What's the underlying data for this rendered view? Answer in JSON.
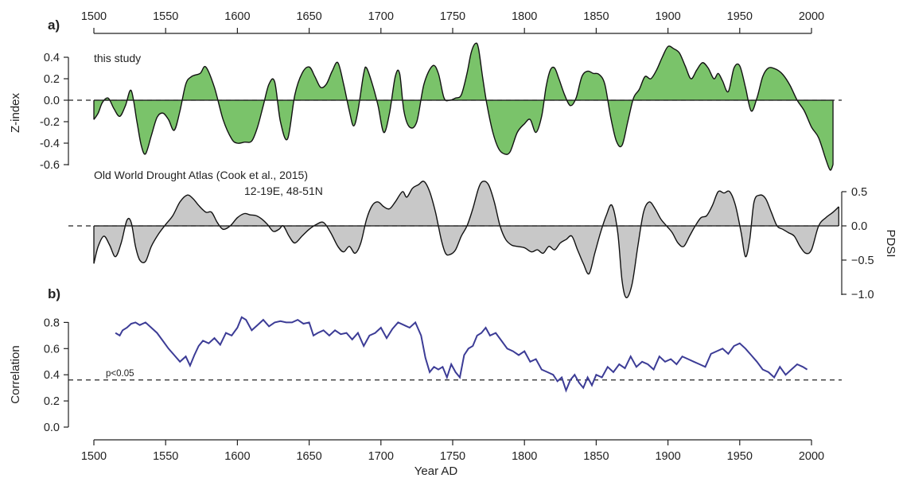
{
  "panel_labels": {
    "a": "a)",
    "b": "b)"
  },
  "chart_data": [
    {
      "type": "area",
      "title": "this study",
      "xlabel": "",
      "ylabel": "Z-index",
      "xlim": [
        1500,
        2020
      ],
      "ylim": [
        -0.6,
        0.45
      ],
      "x_ticks": [
        "1500",
        "1550",
        "1600",
        "1650",
        "1700",
        "1750",
        "1800",
        "1850",
        "1900",
        "1950",
        "2000"
      ],
      "y_ticks": [
        "0.4",
        "0.2",
        "0.0",
        "-0.2",
        "-0.4",
        "-0.6"
      ],
      "reference_line": 0,
      "fill_color": "#7ac36a",
      "series": [
        {
          "x": [
            1500,
            1503,
            1506,
            1510,
            1514,
            1518,
            1522,
            1526,
            1530,
            1533,
            1536,
            1540,
            1544,
            1548,
            1552,
            1556,
            1560,
            1564,
            1568,
            1574,
            1578,
            1584,
            1590,
            1596,
            1600,
            1605,
            1610,
            1614,
            1618,
            1622,
            1626,
            1630,
            1635,
            1640,
            1645,
            1650,
            1654,
            1658,
            1662,
            1666,
            1670,
            1674,
            1678,
            1681,
            1684,
            1688,
            1690,
            1694,
            1698,
            1702,
            1706,
            1710,
            1713,
            1716,
            1720,
            1725,
            1730,
            1736,
            1740,
            1744,
            1748,
            1752,
            1756,
            1760,
            1763,
            1766,
            1768,
            1771,
            1774,
            1778,
            1782,
            1786,
            1790,
            1795,
            1800,
            1804,
            1808,
            1812,
            1815,
            1818,
            1821,
            1824,
            1828,
            1832,
            1836,
            1840,
            1844,
            1848,
            1852,
            1856,
            1860,
            1864,
            1868,
            1872,
            1876,
            1880,
            1884,
            1888,
            1892,
            1896,
            1900,
            1904,
            1908,
            1912,
            1916,
            1920,
            1924,
            1928,
            1932,
            1935,
            1938,
            1942,
            1946,
            1950,
            1954,
            1958,
            1962,
            1966,
            1970,
            1975,
            1980,
            1985,
            1990,
            1995,
            2000,
            2005,
            2010,
            2013,
            2015
          ],
          "y": [
            -0.18,
            -0.12,
            -0.02,
            0.02,
            -0.08,
            -0.15,
            -0.05,
            0.09,
            -0.2,
            -0.42,
            -0.5,
            -0.33,
            -0.16,
            -0.12,
            -0.18,
            -0.28,
            -0.1,
            0.15,
            0.22,
            0.25,
            0.31,
            0.12,
            -0.18,
            -0.36,
            -0.4,
            -0.39,
            -0.38,
            -0.25,
            -0.05,
            0.15,
            0.17,
            -0.2,
            -0.36,
            0.05,
            0.25,
            0.31,
            0.22,
            0.12,
            0.15,
            0.27,
            0.35,
            0.15,
            -0.1,
            -0.24,
            -0.1,
            0.25,
            0.3,
            0.15,
            -0.05,
            -0.3,
            -0.12,
            0.22,
            0.25,
            -0.1,
            -0.25,
            -0.2,
            0.15,
            0.32,
            0.25,
            0.02,
            0.0,
            0.02,
            0.05,
            0.25,
            0.45,
            0.53,
            0.48,
            0.2,
            -0.05,
            -0.3,
            -0.45,
            -0.5,
            -0.48,
            -0.3,
            -0.22,
            -0.18,
            -0.3,
            -0.15,
            0.12,
            0.28,
            0.3,
            0.2,
            0.05,
            -0.05,
            0.02,
            0.22,
            0.27,
            0.25,
            0.24,
            0.15,
            -0.15,
            -0.38,
            -0.42,
            -0.2,
            0.02,
            0.1,
            0.22,
            0.2,
            0.28,
            0.4,
            0.5,
            0.48,
            0.44,
            0.32,
            0.2,
            0.28,
            0.35,
            0.3,
            0.2,
            0.25,
            0.18,
            0.08,
            0.3,
            0.32,
            0.12,
            -0.1,
            0.02,
            0.22,
            0.3,
            0.29,
            0.24,
            0.14,
            0.0,
            -0.1,
            -0.25,
            -0.35,
            -0.55,
            -0.65,
            -0.6
          ]
        }
      ]
    },
    {
      "type": "area",
      "title": "Old World Drought Atlas (Cook et al., 2015)",
      "subtitle": "12-19E, 48-51N",
      "xlabel": "",
      "ylabel": "PDSI",
      "xlim": [
        1500,
        2020
      ],
      "ylim": [
        -1.0,
        0.55
      ],
      "y_ticks": [
        "0.5",
        "0.0",
        "−0.5",
        "−1.0"
      ],
      "reference_line": 0,
      "fill_color": "#c8c8c8",
      "series": [
        {
          "x": [
            1500,
            1503,
            1507,
            1511,
            1515,
            1519,
            1523,
            1526,
            1529,
            1532,
            1536,
            1540,
            1545,
            1550,
            1555,
            1560,
            1565,
            1569,
            1573,
            1578,
            1582,
            1586,
            1590,
            1595,
            1600,
            1605,
            1609,
            1613,
            1617,
            1621,
            1625,
            1629,
            1632,
            1636,
            1640,
            1645,
            1650,
            1655,
            1660,
            1665,
            1670,
            1674,
            1678,
            1682,
            1686,
            1690,
            1694,
            1698,
            1702,
            1706,
            1710,
            1715,
            1718,
            1722,
            1726,
            1730,
            1734,
            1738,
            1742,
            1745,
            1748,
            1752,
            1756,
            1760,
            1764,
            1768,
            1771,
            1775,
            1779,
            1783,
            1787,
            1791,
            1795,
            1800,
            1805,
            1809,
            1813,
            1817,
            1821,
            1825,
            1829,
            1833,
            1837,
            1841,
            1845,
            1849,
            1853,
            1857,
            1861,
            1865,
            1868,
            1871,
            1875,
            1879,
            1883,
            1887,
            1891,
            1895,
            1899,
            1903,
            1907,
            1911,
            1915,
            1919,
            1923,
            1927,
            1931,
            1935,
            1939,
            1943,
            1947,
            1951,
            1954,
            1957,
            1960,
            1964,
            1968,
            1972,
            1976,
            1980,
            1984,
            1988,
            1992,
            1996,
            2000,
            2005,
            2010,
            2015,
            2019
          ],
          "y": [
            -0.55,
            -0.3,
            -0.15,
            -0.28,
            -0.45,
            -0.25,
            0.08,
            0.05,
            -0.3,
            -0.5,
            -0.52,
            -0.3,
            -0.12,
            0.02,
            0.15,
            0.35,
            0.45,
            0.4,
            0.3,
            0.2,
            0.2,
            0.05,
            -0.05,
            0.0,
            0.12,
            0.18,
            0.16,
            0.15,
            0.1,
            0.02,
            -0.08,
            -0.05,
            0.0,
            -0.15,
            -0.25,
            -0.15,
            -0.05,
            0.02,
            0.05,
            -0.1,
            -0.3,
            -0.38,
            -0.3,
            -0.4,
            -0.25,
            0.1,
            0.3,
            0.35,
            0.28,
            0.25,
            0.35,
            0.5,
            0.42,
            0.55,
            0.6,
            0.65,
            0.5,
            0.2,
            -0.2,
            -0.4,
            -0.42,
            -0.35,
            -0.15,
            0.0,
            0.25,
            0.55,
            0.65,
            0.6,
            0.35,
            0.0,
            -0.2,
            -0.28,
            -0.3,
            -0.32,
            -0.38,
            -0.35,
            -0.4,
            -0.3,
            -0.35,
            -0.25,
            -0.2,
            -0.15,
            -0.35,
            -0.55,
            -0.7,
            -0.4,
            -0.1,
            0.15,
            0.3,
            -0.1,
            -0.8,
            -1.05,
            -0.85,
            -0.3,
            0.2,
            0.35,
            0.25,
            0.1,
            0.0,
            -0.1,
            -0.25,
            -0.3,
            -0.15,
            0.0,
            0.12,
            0.15,
            0.3,
            0.5,
            0.48,
            0.5,
            0.3,
            -0.1,
            -0.45,
            -0.2,
            0.35,
            0.45,
            0.4,
            0.2,
            0.0,
            -0.05,
            -0.1,
            -0.15,
            -0.3,
            -0.4,
            -0.35,
            0.0,
            0.12,
            0.2,
            0.28
          ]
        }
      ]
    },
    {
      "type": "line",
      "title": "",
      "xlabel": "Year AD",
      "ylabel": "Correlation",
      "xlim": [
        1500,
        2020
      ],
      "ylim": [
        0.0,
        0.85
      ],
      "x_ticks": [
        "1500",
        "1550",
        "1600",
        "1650",
        "1700",
        "1750",
        "1800",
        "1850",
        "1900",
        "1950",
        "2000"
      ],
      "y_ticks": [
        "0.8",
        "0.6",
        "0.4",
        "0.2",
        "0.0"
      ],
      "threshold": {
        "value": 0.36,
        "label": "p<0.05"
      },
      "line_color": "#3c3c96",
      "series": [
        {
          "x": [
            1515,
            1518,
            1520,
            1523,
            1526,
            1529,
            1532,
            1536,
            1540,
            1544,
            1548,
            1552,
            1556,
            1560,
            1564,
            1567,
            1570,
            1573,
            1576,
            1580,
            1584,
            1588,
            1592,
            1596,
            1600,
            1603,
            1606,
            1610,
            1614,
            1618,
            1622,
            1626,
            1630,
            1634,
            1638,
            1642,
            1646,
            1650,
            1653,
            1656,
            1660,
            1664,
            1668,
            1672,
            1676,
            1680,
            1684,
            1688,
            1692,
            1696,
            1700,
            1704,
            1708,
            1712,
            1716,
            1720,
            1724,
            1728,
            1731,
            1734,
            1737,
            1740,
            1743,
            1746,
            1749,
            1752,
            1755,
            1758,
            1761,
            1764,
            1767,
            1770,
            1773,
            1776,
            1780,
            1784,
            1788,
            1792,
            1796,
            1800,
            1804,
            1808,
            1812,
            1816,
            1820,
            1823,
            1826,
            1829,
            1832,
            1835,
            1838,
            1841,
            1844,
            1847,
            1850,
            1854,
            1858,
            1862,
            1866,
            1870,
            1874,
            1878,
            1882,
            1886,
            1890,
            1894,
            1898,
            1902,
            1906,
            1910,
            1914,
            1918,
            1922,
            1926,
            1930,
            1934,
            1938,
            1942,
            1946,
            1950,
            1954,
            1958,
            1962,
            1966,
            1970,
            1974,
            1978,
            1982,
            1986,
            1990,
            1994,
            1997
          ],
          "y": [
            0.72,
            0.7,
            0.74,
            0.76,
            0.79,
            0.8,
            0.78,
            0.8,
            0.76,
            0.72,
            0.66,
            0.6,
            0.55,
            0.5,
            0.54,
            0.47,
            0.55,
            0.62,
            0.66,
            0.64,
            0.68,
            0.63,
            0.72,
            0.7,
            0.76,
            0.84,
            0.82,
            0.74,
            0.78,
            0.82,
            0.77,
            0.8,
            0.81,
            0.8,
            0.8,
            0.82,
            0.79,
            0.8,
            0.7,
            0.72,
            0.74,
            0.7,
            0.74,
            0.71,
            0.72,
            0.67,
            0.72,
            0.62,
            0.7,
            0.72,
            0.76,
            0.68,
            0.75,
            0.8,
            0.78,
            0.76,
            0.8,
            0.7,
            0.53,
            0.42,
            0.46,
            0.44,
            0.46,
            0.38,
            0.48,
            0.42,
            0.38,
            0.55,
            0.6,
            0.62,
            0.7,
            0.72,
            0.76,
            0.7,
            0.72,
            0.66,
            0.6,
            0.58,
            0.55,
            0.58,
            0.5,
            0.52,
            0.44,
            0.42,
            0.4,
            0.35,
            0.38,
            0.28,
            0.36,
            0.4,
            0.34,
            0.3,
            0.38,
            0.32,
            0.4,
            0.38,
            0.46,
            0.42,
            0.48,
            0.45,
            0.54,
            0.46,
            0.5,
            0.48,
            0.44,
            0.54,
            0.5,
            0.52,
            0.48,
            0.54,
            0.52,
            0.5,
            0.48,
            0.46,
            0.56,
            0.58,
            0.6,
            0.56,
            0.62,
            0.64,
            0.6,
            0.55,
            0.5,
            0.44,
            0.42,
            0.38,
            0.46,
            0.4,
            0.44,
            0.48,
            0.46,
            0.44
          ]
        }
      ]
    }
  ]
}
